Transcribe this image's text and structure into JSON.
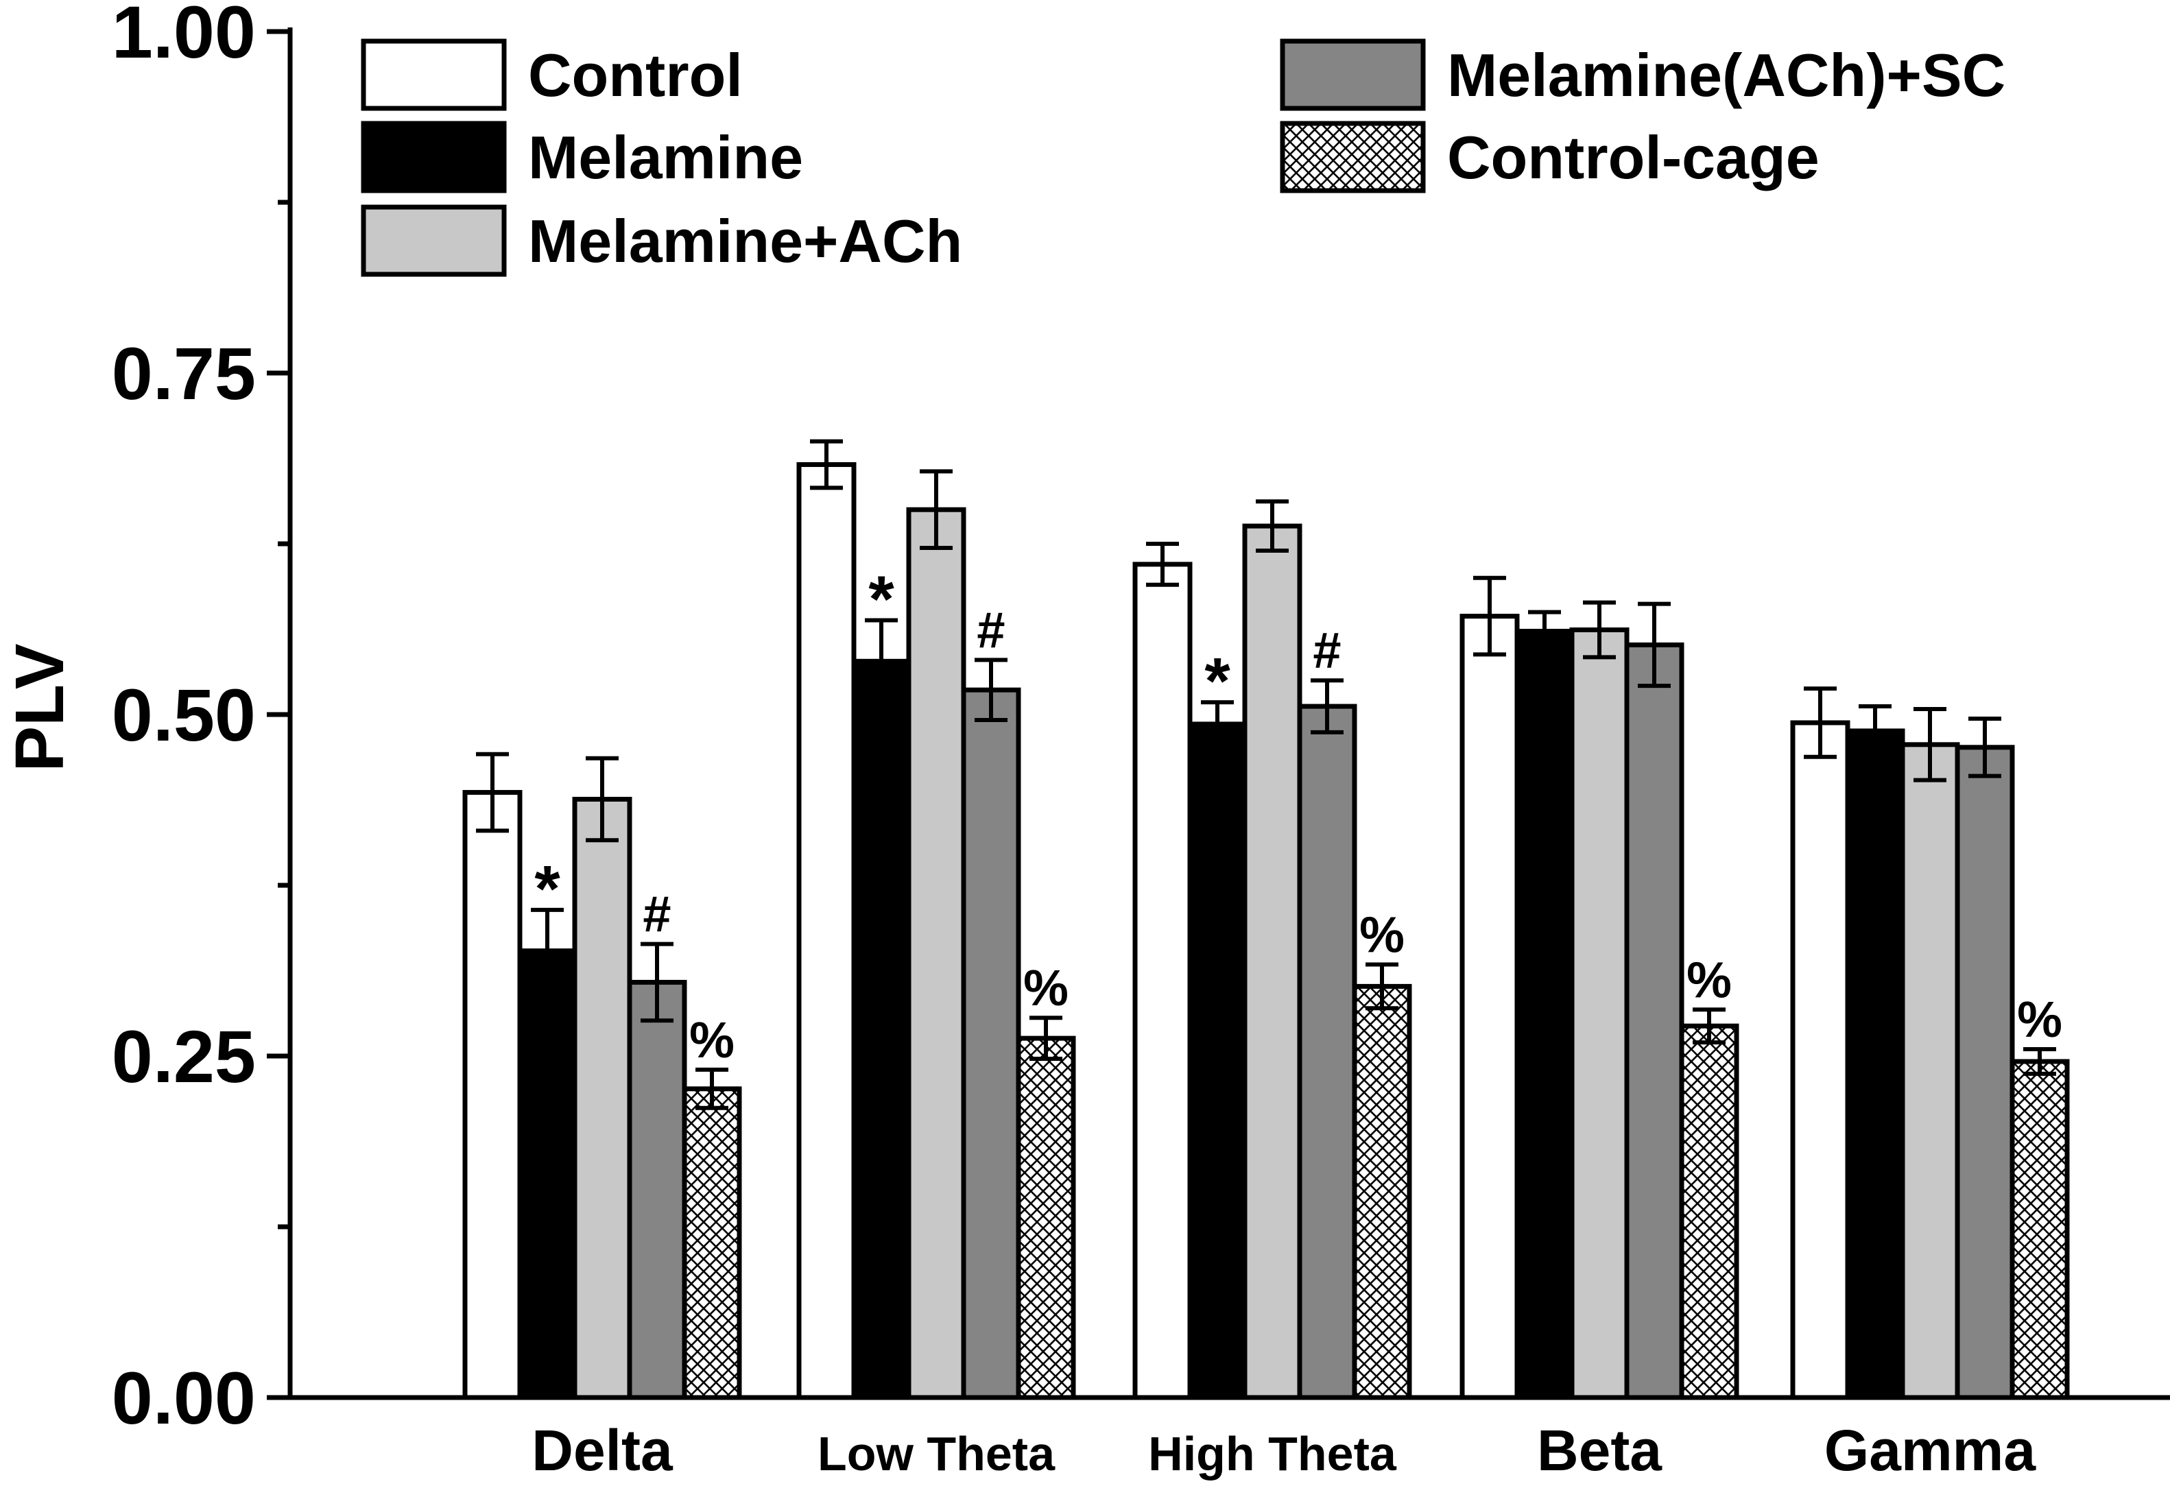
{
  "chart_data": {
    "type": "bar",
    "title": "",
    "xlabel": "",
    "ylabel": "PLV",
    "ylim": [
      0,
      1
    ],
    "yticks": [
      "0.00",
      "0.25",
      "0.50",
      "0.75",
      "1.00"
    ],
    "categories": [
      "Delta",
      "Low Theta",
      "High Theta",
      "Beta",
      "Gamma"
    ],
    "category_label_style": [
      "large",
      "small",
      "small",
      "large",
      "large"
    ],
    "series": [
      {
        "name": "Control",
        "color": "#ffffff",
        "pattern": "none",
        "values": [
          0.443,
          0.683,
          0.61,
          0.572,
          0.494
        ],
        "errors": [
          0.028,
          0.017,
          0.015,
          0.028,
          0.025
        ]
      },
      {
        "name": "Melamine",
        "color": "#000000",
        "pattern": "none",
        "values": [
          0.327,
          0.539,
          0.493,
          0.561,
          0.488
        ],
        "errors": [
          0.03,
          0.03,
          0.016,
          0.014,
          0.018
        ]
      },
      {
        "name": "Melamine+ACh",
        "color": "#c8c8c8",
        "pattern": "none",
        "values": [
          0.438,
          0.65,
          0.638,
          0.562,
          0.478
        ],
        "errors": [
          0.03,
          0.028,
          0.018,
          0.02,
          0.026
        ]
      },
      {
        "name": "Melamine(ACh)+SC",
        "color": "#858585",
        "pattern": "none",
        "values": [
          0.304,
          0.518,
          0.506,
          0.551,
          0.476
        ],
        "errors": [
          0.028,
          0.022,
          0.019,
          0.03,
          0.021
        ]
      },
      {
        "name": "Control-cage",
        "color": "#ffffff",
        "pattern": "crosshatch",
        "values": [
          0.226,
          0.263,
          0.301,
          0.272,
          0.246
        ],
        "errors": [
          0.014,
          0.015,
          0.016,
          0.012,
          0.009
        ]
      }
    ],
    "annotations": [
      {
        "category": "Delta",
        "series": "Melamine",
        "text": "*"
      },
      {
        "category": "Delta",
        "series": "Melamine(ACh)+SC",
        "text": "#"
      },
      {
        "category": "Delta",
        "series": "Control-cage",
        "text": "%"
      },
      {
        "category": "Low Theta",
        "series": "Melamine",
        "text": "*"
      },
      {
        "category": "Low Theta",
        "series": "Melamine(ACh)+SC",
        "text": "#"
      },
      {
        "category": "Low Theta",
        "series": "Control-cage",
        "text": "%"
      },
      {
        "category": "High Theta",
        "series": "Melamine",
        "text": "*"
      },
      {
        "category": "High Theta",
        "series": "Melamine(ACh)+SC",
        "text": "#"
      },
      {
        "category": "High Theta",
        "series": "Control-cage",
        "text": "%"
      },
      {
        "category": "Beta",
        "series": "Control-cage",
        "text": "%"
      },
      {
        "category": "Gamma",
        "series": "Control-cage",
        "text": "%"
      }
    ],
    "legend_position": "top",
    "grid": false
  }
}
